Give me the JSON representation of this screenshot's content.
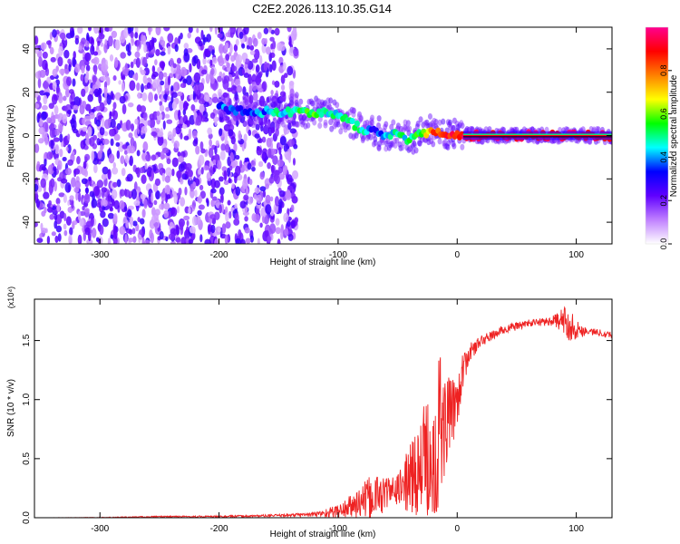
{
  "title": "C2E2.2026.113.10.35.G14",
  "chart_data": [
    {
      "type": "heatmap",
      "title": "C2E2.2026.113.10.35.G14",
      "xlabel": "Height of straight line (km)",
      "ylabel": "Frequency (Hz)",
      "xlim": [
        -355,
        130
      ],
      "ylim": [
        -50,
        50
      ],
      "xticks": [
        -300,
        -200,
        -100,
        0,
        100
      ],
      "xtick_labels": [
        "-300",
        "-200",
        "-100",
        "0",
        "100"
      ],
      "yticks": [
        -40,
        -20,
        0,
        20,
        40
      ],
      "ytick_labels": [
        "-40",
        "-20",
        "0",
        "20",
        "40"
      ],
      "colorbar": {
        "label": "Normalized spectral amplitude",
        "ticks": [
          0.0,
          0.2,
          0.4,
          0.6,
          0.8
        ],
        "tick_labels": [
          "0.0",
          "0.2",
          "0.4",
          "0.6",
          "0.8"
        ],
        "range": [
          0,
          1
        ],
        "colors": [
          "#ffffff",
          "#c080ff",
          "#6000ff",
          "#0000ff",
          "#00ffff",
          "#00ff00",
          "#ffff00",
          "#ff8000",
          "#ff0000",
          "#ff0090"
        ]
      },
      "noise_region_x": [
        -355,
        -135
      ],
      "ridge": {
        "x": [
          -200,
          -180,
          -160,
          -140,
          -120,
          -100,
          -90,
          -80,
          -70,
          -60,
          -50,
          -40,
          -30,
          -20,
          -10,
          0,
          20,
          60,
          100,
          130
        ],
        "freq": [
          13,
          11,
          11,
          11,
          11,
          9,
          6,
          3,
          2,
          0,
          1,
          -2,
          1,
          2,
          1,
          0,
          0,
          0,
          0,
          0
        ],
        "amplitude": [
          0.35,
          0.35,
          0.4,
          0.5,
          0.55,
          0.45,
          0.5,
          0.45,
          0.35,
          0.4,
          0.45,
          0.5,
          0.55,
          0.8,
          0.85,
          0.9,
          0.95,
          0.95,
          0.95,
          0.9
        ]
      }
    },
    {
      "type": "line",
      "xlabel": "Height of straight line (km)",
      "ylabel": "SNR (10 * v/v)",
      "y_scale_label": "(x10⁴)",
      "xlim": [
        -355,
        130
      ],
      "ylim": [
        0,
        1.85
      ],
      "xticks": [
        -300,
        -200,
        -100,
        0,
        100
      ],
      "xtick_labels": [
        "-300",
        "-200",
        "-100",
        "0",
        "100"
      ],
      "yticks": [
        0.0,
        0.5,
        1.0,
        1.5
      ],
      "ytick_labels": [
        "0.0",
        "0.5",
        "1.0",
        "1.5"
      ],
      "color": "#ee2222",
      "series": [
        {
          "x": [
            -355,
            -300,
            -250,
            -200,
            -150,
            -120,
            -100,
            -90,
            -80,
            -70,
            -60,
            -50,
            -40,
            -30,
            -20,
            -15,
            -10,
            -5,
            0,
            5,
            10,
            20,
            30,
            40,
            60,
            80,
            90,
            95,
            100,
            110,
            120,
            130
          ],
          "y": [
            0.0,
            0.0,
            0.01,
            0.01,
            0.02,
            0.03,
            0.06,
            0.1,
            0.15,
            0.2,
            0.22,
            0.25,
            0.35,
            0.45,
            0.6,
            0.8,
            0.85,
            0.9,
            1.05,
            1.25,
            1.4,
            1.5,
            1.55,
            1.6,
            1.65,
            1.67,
            1.68,
            1.65,
            1.6,
            1.58,
            1.57,
            1.55
          ],
          "noise": [
            0.0,
            0.005,
            0.005,
            0.008,
            0.01,
            0.02,
            0.06,
            0.1,
            0.15,
            0.2,
            0.15,
            0.12,
            0.3,
            0.5,
            0.7,
            0.9,
            0.4,
            0.3,
            0.25,
            0.15,
            0.08,
            0.05,
            0.04,
            0.04,
            0.03,
            0.04,
            0.12,
            0.15,
            0.08,
            0.03,
            0.03,
            0.03
          ]
        }
      ]
    }
  ]
}
